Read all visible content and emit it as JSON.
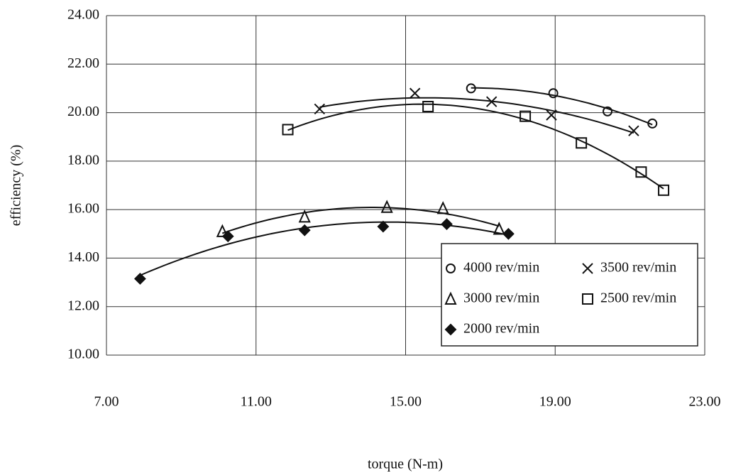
{
  "chart_data": {
    "type": "scatter",
    "x_label": "torque (N-m)",
    "y_label": "efficiency (%)",
    "xlim": [
      7,
      23
    ],
    "xticks": [
      {
        "value": 7,
        "label": "7.00"
      },
      {
        "value": 11,
        "label": "11.00"
      },
      {
        "value": 15,
        "label": "15.00"
      },
      {
        "value": 19,
        "label": "19.00"
      },
      {
        "value": 23,
        "label": "23.00"
      }
    ],
    "ylim": [
      10,
      24
    ],
    "yticks": [
      {
        "value": 10,
        "label": "10.00"
      },
      {
        "value": 12,
        "label": "12.00"
      },
      {
        "value": 14,
        "label": "14.00"
      },
      {
        "value": 16,
        "label": "16.00"
      },
      {
        "value": 18,
        "label": "18.00"
      },
      {
        "value": 20,
        "label": "20.00"
      },
      {
        "value": 22,
        "label": "22.00"
      },
      {
        "value": 24,
        "label": "24.00"
      }
    ],
    "grid": true,
    "legend": "lower right",
    "trendline": "quadratic",
    "series": [
      {
        "name": "4000 rev/min",
        "color": "#111111",
        "marker": "circle",
        "x": [
          16.75,
          18.95,
          20.4,
          21.6
        ],
        "values": [
          21.0,
          20.8,
          20.05,
          19.55
        ]
      },
      {
        "name": "3500 rev/min",
        "color": "#111111",
        "marker": "cross",
        "x": [
          12.7,
          15.25,
          17.3,
          18.9,
          21.1
        ],
        "values": [
          20.15,
          20.8,
          20.45,
          19.9,
          19.25
        ]
      },
      {
        "name": "3000 rev/min",
        "color": "#111111",
        "marker": "triangle",
        "x": [
          10.1,
          12.3,
          14.5,
          16.0,
          17.5
        ],
        "values": [
          15.1,
          15.7,
          16.1,
          16.05,
          15.2
        ]
      },
      {
        "name": "2500 rev/min",
        "color": "#111111",
        "marker": "square",
        "x": [
          11.85,
          15.6,
          18.2,
          19.7,
          21.3,
          21.9
        ],
        "values": [
          19.3,
          20.25,
          19.85,
          18.75,
          17.55,
          16.8
        ]
      },
      {
        "name": "2000 rev/min",
        "color": "#111111",
        "marker": "diamond",
        "x": [
          7.9,
          10.25,
          12.3,
          14.4,
          16.1,
          17.75
        ],
        "values": [
          13.15,
          14.9,
          15.15,
          15.3,
          15.4,
          15.0
        ]
      }
    ]
  }
}
